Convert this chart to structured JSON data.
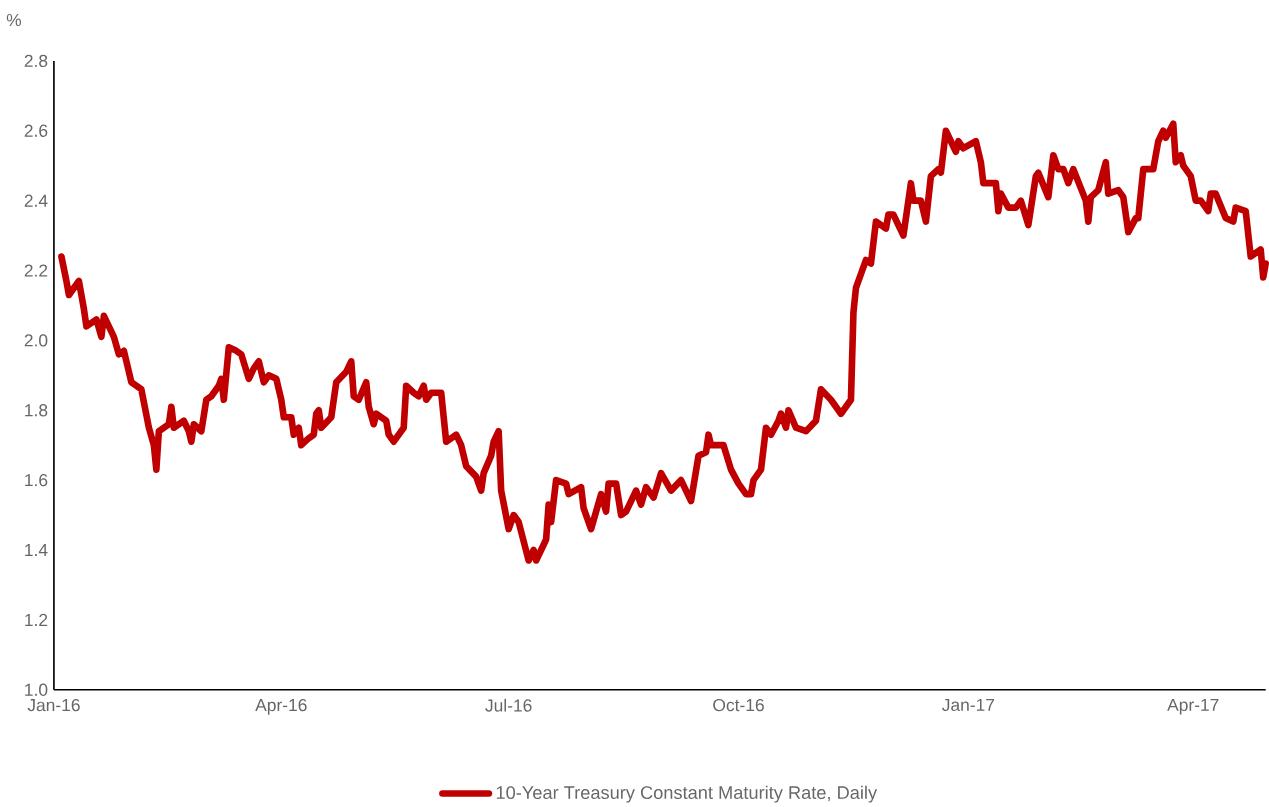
{
  "chart_data": {
    "type": "line",
    "ylabel": "%",
    "legend": "bottom",
    "x": [
      "2016-01-04",
      "2016-01-06",
      "2016-01-07",
      "2016-01-11",
      "2016-01-13",
      "2016-01-14",
      "2016-01-18",
      "2016-01-20",
      "2016-01-21",
      "2016-01-25",
      "2016-01-27",
      "2016-01-29",
      "2016-02-01",
      "2016-02-05",
      "2016-02-08",
      "2016-02-10",
      "2016-02-11",
      "2016-02-12",
      "2016-02-16",
      "2016-02-17",
      "2016-02-18",
      "2016-02-22",
      "2016-02-24",
      "2016-02-25",
      "2016-02-26",
      "2016-02-29",
      "2016-03-02",
      "2016-03-04",
      "2016-03-07",
      "2016-03-08",
      "2016-03-09",
      "2016-03-11",
      "2016-03-14",
      "2016-03-16",
      "2016-03-19",
      "2016-03-21",
      "2016-03-23",
      "2016-03-25",
      "2016-03-27",
      "2016-03-30",
      "2016-04-01",
      "2016-04-02",
      "2016-04-05",
      "2016-04-06",
      "2016-04-08",
      "2016-04-09",
      "2016-04-12",
      "2016-04-14",
      "2016-04-15",
      "2016-04-16",
      "2016-04-17",
      "2016-04-21",
      "2016-04-23",
      "2016-04-27",
      "2016-04-29",
      "2016-04-30",
      "2016-05-02",
      "2016-05-05",
      "2016-05-06",
      "2016-05-08",
      "2016-05-09",
      "2016-05-13",
      "2016-05-14",
      "2016-05-16",
      "2016-05-20",
      "2016-05-21",
      "2016-05-24",
      "2016-05-26",
      "2016-05-28",
      "2016-05-29",
      "2016-05-31",
      "2016-06-04",
      "2016-06-06",
      "2016-06-10",
      "2016-06-12",
      "2016-06-14",
      "2016-06-18",
      "2016-06-20",
      "2016-06-21",
      "2016-06-24",
      "2016-06-25",
      "2016-06-27",
      "2016-06-28",
      "2016-07-01",
      "2016-07-03",
      "2016-07-05",
      "2016-07-09",
      "2016-07-11",
      "2016-07-12",
      "2016-07-16",
      "2016-07-17",
      "2016-07-18",
      "2016-07-20",
      "2016-07-24",
      "2016-07-25",
      "2016-07-30",
      "2016-07-31",
      "2016-08-03",
      "2016-08-07",
      "2016-08-09",
      "2016-08-10",
      "2016-08-13",
      "2016-08-15",
      "2016-08-17",
      "2016-08-21",
      "2016-08-23",
      "2016-08-25",
      "2016-08-28",
      "2016-08-31",
      "2016-09-04",
      "2016-09-08",
      "2016-09-12",
      "2016-09-15",
      "2016-09-18",
      "2016-09-19",
      "2016-09-20",
      "2016-09-25",
      "2016-09-28",
      "2016-10-01",
      "2016-10-04",
      "2016-10-06",
      "2016-10-07",
      "2016-10-10",
      "2016-10-12",
      "2016-10-14",
      "2016-10-17",
      "2016-10-18",
      "2016-10-20",
      "2016-10-21",
      "2016-10-24",
      "2016-10-28",
      "2016-11-01",
      "2016-11-03",
      "2016-11-07",
      "2016-11-11",
      "2016-11-15",
      "2016-11-16",
      "2016-11-17",
      "2016-11-21",
      "2016-11-23",
      "2016-11-25",
      "2016-11-29",
      "2016-11-30",
      "2016-12-02",
      "2016-12-06",
      "2016-12-09",
      "2016-12-10",
      "2016-12-13",
      "2016-12-15",
      "2016-12-17",
      "2016-12-20",
      "2016-12-21",
      "2016-12-23",
      "2016-12-27",
      "2016-12-28",
      "2016-12-30",
      "2017-01-04",
      "2017-01-06",
      "2017-01-07",
      "2017-01-12",
      "2017-01-13",
      "2017-01-14",
      "2017-01-17",
      "2017-01-20",
      "2017-01-22",
      "2017-01-25",
      "2017-01-28",
      "2017-01-29",
      "2017-02-02",
      "2017-02-04",
      "2017-02-06",
      "2017-02-08",
      "2017-02-10",
      "2017-02-12",
      "2017-02-17",
      "2017-02-18",
      "2017-02-19",
      "2017-02-22",
      "2017-02-25",
      "2017-02-26",
      "2017-03-02",
      "2017-03-04",
      "2017-03-06",
      "2017-03-09",
      "2017-03-10",
      "2017-03-12",
      "2017-03-16",
      "2017-03-18",
      "2017-03-20",
      "2017-03-21",
      "2017-03-24",
      "2017-03-25",
      "2017-03-27",
      "2017-03-28",
      "2017-03-31",
      "2017-04-02",
      "2017-04-04",
      "2017-04-07",
      "2017-04-08",
      "2017-04-10",
      "2017-04-14",
      "2017-04-17",
      "2017-04-18",
      "2017-04-22",
      "2017-04-24",
      "2017-04-28",
      "2017-04-29",
      "2017-04-30"
    ],
    "series": [
      {
        "name": "10-Year Treasury Constant Maturity Rate, Daily",
        "color": "#c00000",
        "values": [
          2.24,
          2.17,
          2.13,
          2.17,
          2.09,
          2.04,
          2.06,
          2.01,
          2.07,
          2.01,
          1.96,
          1.97,
          1.88,
          1.86,
          1.75,
          1.7,
          1.63,
          1.74,
          1.76,
          1.81,
          1.75,
          1.77,
          1.74,
          1.71,
          1.76,
          1.74,
          1.83,
          1.84,
          1.87,
          1.89,
          1.83,
          1.98,
          1.97,
          1.96,
          1.89,
          1.92,
          1.94,
          1.88,
          1.9,
          1.89,
          1.83,
          1.78,
          1.78,
          1.73,
          1.75,
          1.7,
          1.72,
          1.73,
          1.79,
          1.8,
          1.75,
          1.78,
          1.88,
          1.91,
          1.94,
          1.84,
          1.83,
          1.88,
          1.81,
          1.76,
          1.79,
          1.77,
          1.73,
          1.71,
          1.75,
          1.87,
          1.85,
          1.84,
          1.87,
          1.83,
          1.85,
          1.85,
          1.71,
          1.73,
          1.7,
          1.64,
          1.61,
          1.57,
          1.62,
          1.67,
          1.71,
          1.74,
          1.57,
          1.46,
          1.5,
          1.48,
          1.37,
          1.4,
          1.37,
          1.43,
          1.53,
          1.48,
          1.6,
          1.59,
          1.56,
          1.58,
          1.52,
          1.46,
          1.56,
          1.51,
          1.59,
          1.59,
          1.5,
          1.51,
          1.57,
          1.53,
          1.58,
          1.55,
          1.62,
          1.57,
          1.6,
          1.54,
          1.67,
          1.68,
          1.73,
          1.7,
          1.7,
          1.63,
          1.59,
          1.56,
          1.56,
          1.6,
          1.63,
          1.75,
          1.73,
          1.77,
          1.79,
          1.75,
          1.8,
          1.75,
          1.74,
          1.77,
          1.86,
          1.83,
          1.79,
          1.83,
          2.08,
          2.15,
          2.23,
          2.22,
          2.34,
          2.32,
          2.36,
          2.36,
          2.3,
          2.45,
          2.4,
          2.4,
          2.34,
          2.47,
          2.49,
          2.48,
          2.6,
          2.54,
          2.57,
          2.55,
          2.57,
          2.51,
          2.45,
          2.45,
          2.37,
          2.42,
          2.38,
          2.38,
          2.4,
          2.33,
          2.47,
          2.48,
          2.41,
          2.53,
          2.49,
          2.49,
          2.45,
          2.49,
          2.4,
          2.34,
          2.41,
          2.43,
          2.51,
          2.42,
          2.43,
          2.41,
          2.31,
          2.35,
          2.35,
          2.49,
          2.49,
          2.57,
          2.6,
          2.58,
          2.62,
          2.51,
          2.53,
          2.5,
          2.47,
          2.4,
          2.4,
          2.37,
          2.42,
          2.42,
          2.35,
          2.34,
          2.38,
          2.37,
          2.24,
          2.26,
          2.18,
          2.22
        ]
      }
    ],
    "xlim": [
      "2016-01-01",
      "2017-04-30"
    ],
    "xticks": [
      {
        "value": "2016-01-01",
        "label": "Jan-16"
      },
      {
        "value": "2016-04-01",
        "label": "Apr-16"
      },
      {
        "value": "2016-07-01",
        "label": "Jul-16"
      },
      {
        "value": "2016-10-01",
        "label": "Oct-16"
      },
      {
        "value": "2017-01-01",
        "label": "Jan-17"
      },
      {
        "value": "2017-04-01",
        "label": "Apr-17"
      }
    ],
    "ylim": [
      1.0,
      2.8
    ],
    "yticks": [
      {
        "value": 1.0,
        "label": "1.0"
      },
      {
        "value": 1.2,
        "label": "1.2"
      },
      {
        "value": 1.4,
        "label": "1.4"
      },
      {
        "value": 1.6,
        "label": "1.6"
      },
      {
        "value": 1.8,
        "label": "1.8"
      },
      {
        "value": 2.0,
        "label": "2.0"
      },
      {
        "value": 2.2,
        "label": "2.2"
      },
      {
        "value": 2.4,
        "label": "2.4"
      },
      {
        "value": 2.6,
        "label": "2.6"
      },
      {
        "value": 2.8,
        "label": "2.8"
      }
    ]
  }
}
